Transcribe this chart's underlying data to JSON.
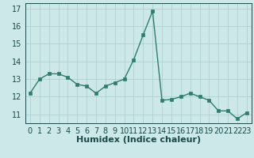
{
  "x": [
    0,
    1,
    2,
    3,
    4,
    5,
    6,
    7,
    8,
    9,
    10,
    11,
    12,
    13,
    14,
    15,
    16,
    17,
    18,
    19,
    20,
    21,
    22,
    23
  ],
  "y": [
    12.2,
    13.0,
    13.3,
    13.3,
    13.1,
    12.7,
    12.6,
    12.2,
    12.6,
    12.8,
    13.0,
    14.1,
    15.5,
    16.85,
    11.8,
    11.85,
    12.0,
    12.2,
    12.0,
    11.8,
    11.2,
    11.2,
    10.75,
    11.1
  ],
  "line_color": "#2e7d6e",
  "marker_color": "#2e7d6e",
  "bg_color": "#cce8e8",
  "grid_color": "#b0d0d0",
  "xlabel": "Humidex (Indice chaleur)",
  "ylim_min": 10.5,
  "ylim_max": 17.3,
  "xlim_min": -0.5,
  "xlim_max": 23.5,
  "yticks": [
    11,
    12,
    13,
    14,
    15,
    16,
    17
  ],
  "xticks": [
    0,
    1,
    2,
    3,
    4,
    5,
    6,
    7,
    8,
    9,
    10,
    11,
    12,
    13,
    14,
    15,
    16,
    17,
    18,
    19,
    20,
    21,
    22,
    23
  ],
  "font_color": "#1a4a4a",
  "xlabel_fontsize": 8,
  "tick_fontsize": 7
}
